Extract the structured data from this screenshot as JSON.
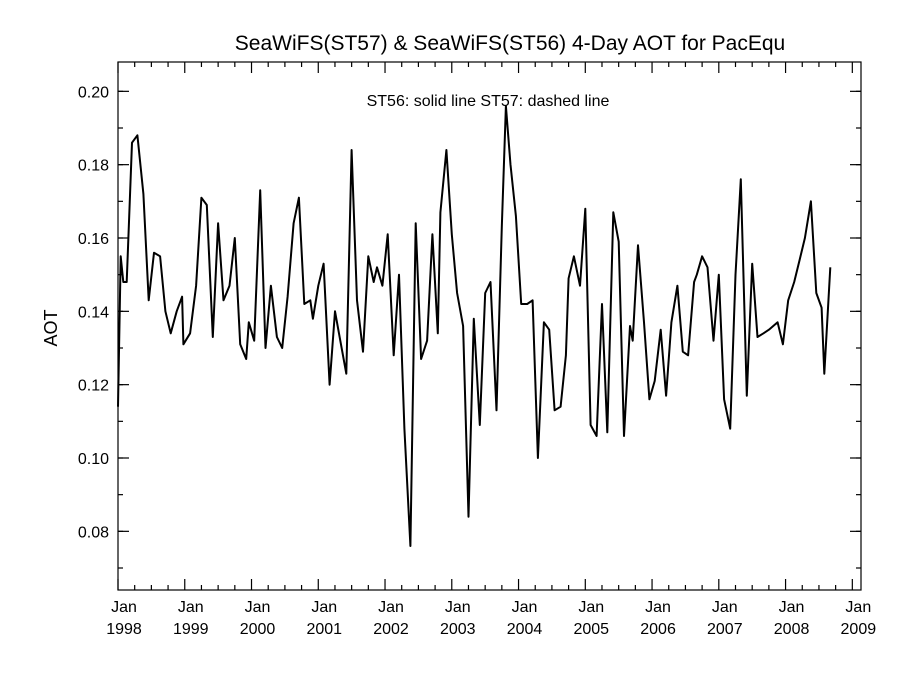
{
  "chart_data": {
    "type": "line",
    "title": "SeaWiFS(ST57) & SeaWiFS(ST56) 4-Day AOT for PacEqu",
    "annotation": "ST56: solid line   ST57: dashed line",
    "xlabel": "",
    "ylabel": "AOT",
    "xlim": [
      1998.0,
      2009.13
    ],
    "ylim": [
      0.064,
      0.208
    ],
    "y_ticks": [
      {
        "value": 0.08,
        "label": "0.08"
      },
      {
        "value": 0.1,
        "label": "0.10"
      },
      {
        "value": 0.12,
        "label": "0.12"
      },
      {
        "value": 0.14,
        "label": "0.14"
      },
      {
        "value": 0.16,
        "label": "0.16"
      },
      {
        "value": 0.18,
        "label": "0.18"
      },
      {
        "value": 0.2,
        "label": "0.20"
      }
    ],
    "x_ticks": [
      {
        "value": 1998,
        "month": "Jan",
        "year": "1998"
      },
      {
        "value": 1999,
        "month": "Jan",
        "year": "1999"
      },
      {
        "value": 2000,
        "month": "Jan",
        "year": "2000"
      },
      {
        "value": 2001,
        "month": "Jan",
        "year": "2001"
      },
      {
        "value": 2002,
        "month": "Jan",
        "year": "2002"
      },
      {
        "value": 2003,
        "month": "Jan",
        "year": "2003"
      },
      {
        "value": 2004,
        "month": "Jan",
        "year": "2004"
      },
      {
        "value": 2005,
        "month": "Jan",
        "year": "2005"
      },
      {
        "value": 2006,
        "month": "Jan",
        "year": "2006"
      },
      {
        "value": 2007,
        "month": "Jan",
        "year": "2007"
      },
      {
        "value": 2008,
        "month": "Jan",
        "year": "2008"
      },
      {
        "value": 2009,
        "month": "Jan",
        "year": "2009"
      }
    ],
    "series": [
      {
        "line_style": "solid",
        "points": [
          [
            1998.0,
            0.114
          ],
          [
            1998.04,
            0.155
          ],
          [
            1998.08,
            0.148
          ],
          [
            1998.13,
            0.148
          ],
          [
            1998.21,
            0.186
          ],
          [
            1998.29,
            0.188
          ],
          [
            1998.38,
            0.172
          ],
          [
            1998.46,
            0.143
          ],
          [
            1998.54,
            0.156
          ],
          [
            1998.63,
            0.155
          ],
          [
            1998.71,
            0.14
          ],
          [
            1998.79,
            0.134
          ],
          [
            1998.88,
            0.14
          ],
          [
            1998.96,
            0.144
          ],
          [
            1998.98,
            0.131
          ],
          [
            1999.08,
            0.134
          ],
          [
            1999.17,
            0.147
          ],
          [
            1999.25,
            0.171
          ],
          [
            1999.33,
            0.169
          ],
          [
            1999.42,
            0.133
          ],
          [
            1999.5,
            0.164
          ],
          [
            1999.58,
            0.143
          ],
          [
            1999.67,
            0.147
          ],
          [
            1999.75,
            0.16
          ],
          [
            1999.83,
            0.131
          ],
          [
            1999.92,
            0.127
          ],
          [
            1999.96,
            0.137
          ],
          [
            2000.04,
            0.132
          ],
          [
            2000.13,
            0.173
          ],
          [
            2000.21,
            0.13
          ],
          [
            2000.29,
            0.147
          ],
          [
            2000.38,
            0.133
          ],
          [
            2000.46,
            0.13
          ],
          [
            2000.54,
            0.144
          ],
          [
            2000.63,
            0.164
          ],
          [
            2000.71,
            0.171
          ],
          [
            2000.79,
            0.142
          ],
          [
            2000.88,
            0.143
          ],
          [
            2000.92,
            0.138
          ],
          [
            2001.0,
            0.147
          ],
          [
            2001.08,
            0.153
          ],
          [
            2001.17,
            0.12
          ],
          [
            2001.25,
            0.14
          ],
          [
            2001.33,
            0.132
          ],
          [
            2001.42,
            0.123
          ],
          [
            2001.5,
            0.184
          ],
          [
            2001.58,
            0.143
          ],
          [
            2001.67,
            0.129
          ],
          [
            2001.75,
            0.155
          ],
          [
            2001.83,
            0.148
          ],
          [
            2001.88,
            0.152
          ],
          [
            2001.96,
            0.147
          ],
          [
            2002.04,
            0.161
          ],
          [
            2002.13,
            0.128
          ],
          [
            2002.21,
            0.15
          ],
          [
            2002.29,
            0.108
          ],
          [
            2002.38,
            0.076
          ],
          [
            2002.46,
            0.164
          ],
          [
            2002.54,
            0.127
          ],
          [
            2002.63,
            0.132
          ],
          [
            2002.71,
            0.161
          ],
          [
            2002.79,
            0.134
          ],
          [
            2002.83,
            0.167
          ],
          [
            2002.92,
            0.184
          ],
          [
            2003.0,
            0.161
          ],
          [
            2003.08,
            0.145
          ],
          [
            2003.17,
            0.136
          ],
          [
            2003.25,
            0.084
          ],
          [
            2003.33,
            0.138
          ],
          [
            2003.42,
            0.109
          ],
          [
            2003.5,
            0.145
          ],
          [
            2003.58,
            0.148
          ],
          [
            2003.67,
            0.113
          ],
          [
            2003.75,
            0.163
          ],
          [
            2003.81,
            0.196
          ],
          [
            2003.88,
            0.18
          ],
          [
            2003.96,
            0.166
          ],
          [
            2004.04,
            0.142
          ],
          [
            2004.13,
            0.142
          ],
          [
            2004.21,
            0.143
          ],
          [
            2004.29,
            0.1
          ],
          [
            2004.38,
            0.137
          ],
          [
            2004.46,
            0.135
          ],
          [
            2004.54,
            0.113
          ],
          [
            2004.63,
            0.114
          ],
          [
            2004.71,
            0.128
          ],
          [
            2004.75,
            0.149
          ],
          [
            2004.83,
            0.155
          ],
          [
            2004.92,
            0.147
          ],
          [
            2005.0,
            0.168
          ],
          [
            2005.08,
            0.109
          ],
          [
            2005.17,
            0.106
          ],
          [
            2005.25,
            0.142
          ],
          [
            2005.33,
            0.107
          ],
          [
            2005.42,
            0.167
          ],
          [
            2005.5,
            0.159
          ],
          [
            2005.58,
            0.106
          ],
          [
            2005.67,
            0.136
          ],
          [
            2005.71,
            0.132
          ],
          [
            2005.79,
            0.158
          ],
          [
            2005.88,
            0.137
          ],
          [
            2005.96,
            0.116
          ],
          [
            2006.04,
            0.121
          ],
          [
            2006.13,
            0.135
          ],
          [
            2006.21,
            0.117
          ],
          [
            2006.29,
            0.137
          ],
          [
            2006.38,
            0.147
          ],
          [
            2006.46,
            0.129
          ],
          [
            2006.54,
            0.128
          ],
          [
            2006.63,
            0.148
          ],
          [
            2006.67,
            0.15
          ],
          [
            2006.75,
            0.155
          ],
          [
            2006.83,
            0.152
          ],
          [
            2006.92,
            0.132
          ],
          [
            2007.0,
            0.15
          ],
          [
            2007.08,
            0.116
          ],
          [
            2007.17,
            0.108
          ],
          [
            2007.25,
            0.15
          ],
          [
            2007.33,
            0.176
          ],
          [
            2007.42,
            0.117
          ],
          [
            2007.5,
            0.153
          ],
          [
            2007.58,
            0.133
          ],
          [
            2007.67,
            0.134
          ],
          [
            2007.75,
            0.135
          ],
          [
            2007.88,
            0.137
          ],
          [
            2007.96,
            0.131
          ],
          [
            2008.04,
            0.143
          ],
          [
            2008.13,
            0.148
          ],
          [
            2008.21,
            0.154
          ],
          [
            2008.29,
            0.16
          ],
          [
            2008.38,
            0.17
          ],
          [
            2008.46,
            0.145
          ],
          [
            2008.54,
            0.141
          ],
          [
            2008.58,
            0.123
          ],
          [
            2008.67,
            0.152
          ]
        ]
      }
    ]
  }
}
